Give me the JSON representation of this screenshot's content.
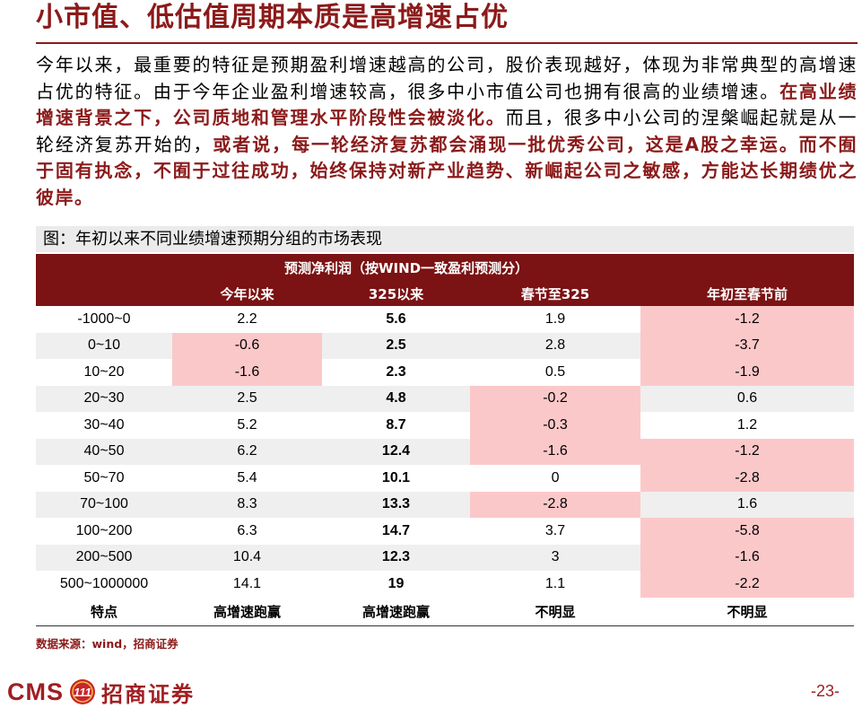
{
  "title": "小市值、低估值周期本质是高增速占优",
  "paragraph": {
    "plain_1": "今年以来，最重要的特征是预期盈利增速越高的公司，股价表现越好，体现为非常典型的高增速占优的特征。由于今年企业盈利增速较高，很多中小市值公司也拥有很高的业绩增速。",
    "highlight_1": "在高业绩增速背景之下，公司质地和管理水平阶段性会被淡化。",
    "plain_2": "而且，很多中小公司的涅槃崛起就是从一轮经济复苏开始的，",
    "highlight_2": "或者说，每一轮经济复苏都会涌现一批优秀公司，这是A股之幸运。而不囿于固有执念，不囿于过往成功，始终保持对新产业趋势、新崛起公司之敏感，方能达长期绩优之彼岸。"
  },
  "figure_caption": "图：年初以来不同业绩增速预期分组的市场表现",
  "table": {
    "group_header": "预测净利润（按WIND一致盈利预测分）",
    "columns": [
      "",
      "今年以来",
      "325以来",
      "春节至325",
      "年初至春节前"
    ],
    "rows": [
      {
        "label": "-1000~0",
        "v1": "2.2",
        "v2": "5.6",
        "v3": "1.9",
        "v4": "-1.2"
      },
      {
        "label": "0~10",
        "v1": "-0.6",
        "v2": "2.5",
        "v3": "2.8",
        "v4": "-3.7"
      },
      {
        "label": "10~20",
        "v1": "-1.6",
        "v2": "2.3",
        "v3": "0.5",
        "v4": "-1.9"
      },
      {
        "label": "20~30",
        "v1": "2.5",
        "v2": "4.8",
        "v3": "-0.2",
        "v4": "0.6"
      },
      {
        "label": "30~40",
        "v1": "5.2",
        "v2": "8.7",
        "v3": "-0.3",
        "v4": "1.2"
      },
      {
        "label": "40~50",
        "v1": "6.2",
        "v2": "12.4",
        "v3": "-1.6",
        "v4": "-1.2"
      },
      {
        "label": "50~70",
        "v1": "5.4",
        "v2": "10.1",
        "v3": "0",
        "v4": "-2.8"
      },
      {
        "label": "70~100",
        "v1": "8.3",
        "v2": "13.3",
        "v3": "-2.8",
        "v4": "1.6"
      },
      {
        "label": "100~200",
        "v1": "6.3",
        "v2": "14.7",
        "v3": "3.7",
        "v4": "-5.8"
      },
      {
        "label": "200~500",
        "v1": "10.4",
        "v2": "12.3",
        "v3": "3",
        "v4": "-1.6"
      },
      {
        "label": "500~1000000",
        "v1": "14.1",
        "v2": "19",
        "v3": "1.1",
        "v4": "-2.2"
      }
    ],
    "footer": {
      "label": "特点",
      "v1": "高增速跑赢",
      "v2": "高增速跑赢",
      "v3": "不明显",
      "v4": "不明显"
    }
  },
  "source": "数据来源：wind，招商证券",
  "logo": {
    "latin": "CMS",
    "badge": "111",
    "chinese": "招商证券"
  },
  "page_number": "-23-",
  "colors": {
    "brand_red": "#8b1a1a",
    "header_bg": "#7b1213",
    "negative_fill": "#fbc8c9",
    "band_gray": "#efefef"
  }
}
